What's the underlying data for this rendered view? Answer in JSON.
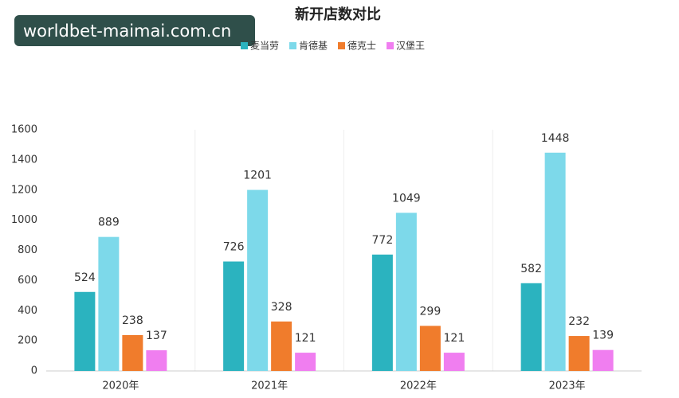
{
  "watermark": "worldbet-maimai.com.cn",
  "chart_data": {
    "type": "bar",
    "title": "新开店数对比",
    "categories": [
      "2020年",
      "2021年",
      "2022年",
      "2023年"
    ],
    "series": [
      {
        "name": "麦当劳",
        "color": "#2bb3bf",
        "values": [
          524,
          726,
          772,
          582
        ]
      },
      {
        "name": "肯德基",
        "color": "#7dd9ea",
        "values": [
          889,
          1201,
          1049,
          1448
        ]
      },
      {
        "name": "德克士",
        "color": "#f07c2c",
        "values": [
          238,
          328,
          299,
          232
        ]
      },
      {
        "name": "汉堡王",
        "color": "#f07ef0",
        "values": [
          137,
          121,
          121,
          139
        ]
      }
    ],
    "ylim": [
      0,
      1600
    ],
    "yticks": [
      0,
      200,
      400,
      600,
      800,
      1000,
      1200,
      1400,
      1600
    ],
    "legend": "top",
    "data_labels": true
  }
}
